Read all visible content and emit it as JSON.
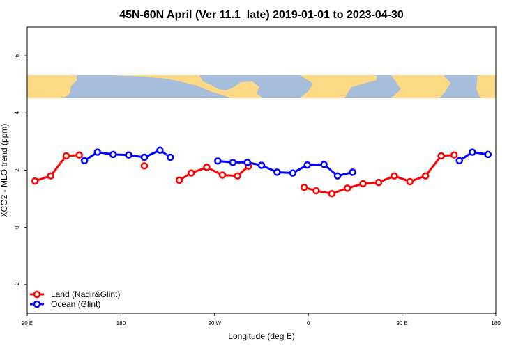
{
  "chart_data": {
    "type": "line",
    "title": "45N-60N April (Ver 11.1_late)   2019-01-01 to 2023-04-30",
    "xlabel": "Longitude (deg E)",
    "ylabel": "XCO2 - MLO trend (ppm)",
    "x_ticks": [
      {
        "value": 90,
        "label": "90 E"
      },
      {
        "value": 180,
        "label": "180"
      },
      {
        "value": 270,
        "label": "90 W"
      },
      {
        "value": 360,
        "label": "0"
      },
      {
        "value": 450,
        "label": "90 E"
      },
      {
        "value": 540,
        "label": "180"
      }
    ],
    "y_ticks": [
      -2,
      0,
      2,
      4,
      6
    ],
    "xlim": [
      90,
      540
    ],
    "ylim": [
      -3,
      7
    ],
    "grid": false,
    "legend_position": "bottom-left",
    "map_strip": {
      "y_range": [
        4.65,
        5.45
      ],
      "ocean_color": "#a6bddb",
      "land_color": "#fdd985"
    },
    "series": [
      {
        "name": "Land (Nadir&Glint)",
        "color": "#ff0000",
        "segments": [
          [
            [
              97.5,
              1.62
            ],
            [
              112.5,
              1.8
            ],
            [
              127.5,
              2.5
            ],
            [
              140,
              2.53
            ]
          ],
          [
            [
              202.5,
              2.15
            ]
          ],
          [
            [
              236,
              1.65
            ],
            [
              247.5,
              1.9
            ],
            [
              262.5,
              2.1
            ],
            [
              277.5,
              1.83
            ],
            [
              292,
              1.8
            ],
            [
              302.5,
              2.14
            ]
          ],
          [
            [
              356,
              1.4
            ],
            [
              367.5,
              1.28
            ],
            [
              382.5,
              1.18
            ],
            [
              397.5,
              1.37
            ],
            [
              412.5,
              1.53
            ],
            [
              427.5,
              1.57
            ],
            [
              442.5,
              1.8
            ],
            [
              457.5,
              1.6
            ],
            [
              472.5,
              1.8
            ],
            [
              487.5,
              2.5
            ],
            [
              500,
              2.53
            ]
          ]
        ]
      },
      {
        "name": "Ocean (Glint)",
        "color": "#0000ff",
        "segments": [
          [
            [
              145,
              2.33
            ],
            [
              157.5,
              2.63
            ],
            [
              172.5,
              2.55
            ],
            [
              187.5,
              2.53
            ],
            [
              202.5,
              2.45
            ],
            [
              217.5,
              2.7
            ],
            [
              227.5,
              2.45
            ]
          ],
          [
            [
              273,
              2.32
            ],
            [
              287.5,
              2.27
            ],
            [
              301.5,
              2.27
            ],
            [
              315,
              2.17
            ],
            [
              330,
              1.93
            ],
            [
              345,
              1.9
            ],
            [
              359,
              2.18
            ],
            [
              375,
              2.2
            ],
            [
              388,
              1.8
            ],
            [
              402.5,
              1.93
            ]
          ],
          [
            [
              505,
              2.33
            ],
            [
              517.5,
              2.63
            ],
            [
              532.5,
              2.55
            ]
          ]
        ]
      }
    ]
  }
}
